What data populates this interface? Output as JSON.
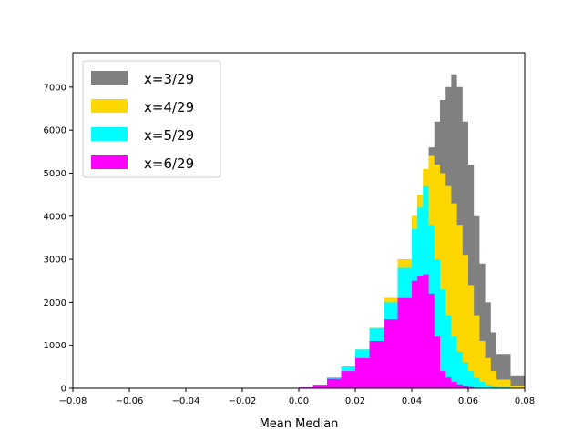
{
  "chart_data": {
    "type": "area",
    "title": "",
    "xlabel": "Mean Median",
    "ylabel": "",
    "xlim": [
      -0.08,
      0.08
    ],
    "ylim": [
      0,
      7800
    ],
    "x_ticks": [
      "-0.08",
      "-0.06",
      "-0.04",
      "-0.02",
      "0.00",
      "0.02",
      "0.04",
      "0.06",
      "0.08"
    ],
    "y_ticks": [
      "0",
      "1000",
      "2000",
      "3000",
      "4000",
      "5000",
      "6000",
      "7000"
    ],
    "grid": false,
    "legend": {
      "position": "top-left"
    },
    "x": [
      -0.005,
      0.0,
      0.005,
      0.01,
      0.015,
      0.02,
      0.025,
      0.03,
      0.035,
      0.04,
      0.042,
      0.044,
      0.046,
      0.048,
      0.05,
      0.052,
      0.054,
      0.056,
      0.058,
      0.06,
      0.062,
      0.064,
      0.066,
      0.068,
      0.07,
      0.075,
      0.08
    ],
    "series": [
      {
        "name": "x=3/29",
        "color": "#808080",
        "values": [
          0,
          20,
          80,
          250,
          500,
          900,
          1400,
          2100,
          3000,
          4000,
          4500,
          5000,
          5600,
          6200,
          6700,
          7000,
          7300,
          7000,
          6200,
          5200,
          4000,
          2900,
          2000,
          1300,
          800,
          300,
          80
        ]
      },
      {
        "name": "x=4/29",
        "color": "#ffd700",
        "values": [
          0,
          20,
          80,
          250,
          500,
          900,
          1400,
          2100,
          3000,
          4000,
          4500,
          5100,
          5400,
          5200,
          5000,
          4700,
          4300,
          3800,
          3100,
          2400,
          1700,
          1100,
          700,
          400,
          200,
          60,
          0
        ]
      },
      {
        "name": "x=5/29",
        "color": "#00ffff",
        "values": [
          0,
          20,
          80,
          250,
          500,
          900,
          1400,
          2000,
          2800,
          3700,
          4200,
          4700,
          3800,
          3000,
          2300,
          1700,
          1200,
          850,
          600,
          400,
          250,
          150,
          80,
          40,
          20,
          0,
          0
        ]
      },
      {
        "name": "x=6/29",
        "color": "#ff00ff",
        "values": [
          0,
          20,
          80,
          220,
          400,
          700,
          1100,
          1600,
          2100,
          2500,
          2600,
          2650,
          2200,
          1200,
          400,
          250,
          150,
          90,
          50,
          25,
          10,
          0,
          0,
          0,
          0,
          0,
          0
        ]
      }
    ]
  }
}
